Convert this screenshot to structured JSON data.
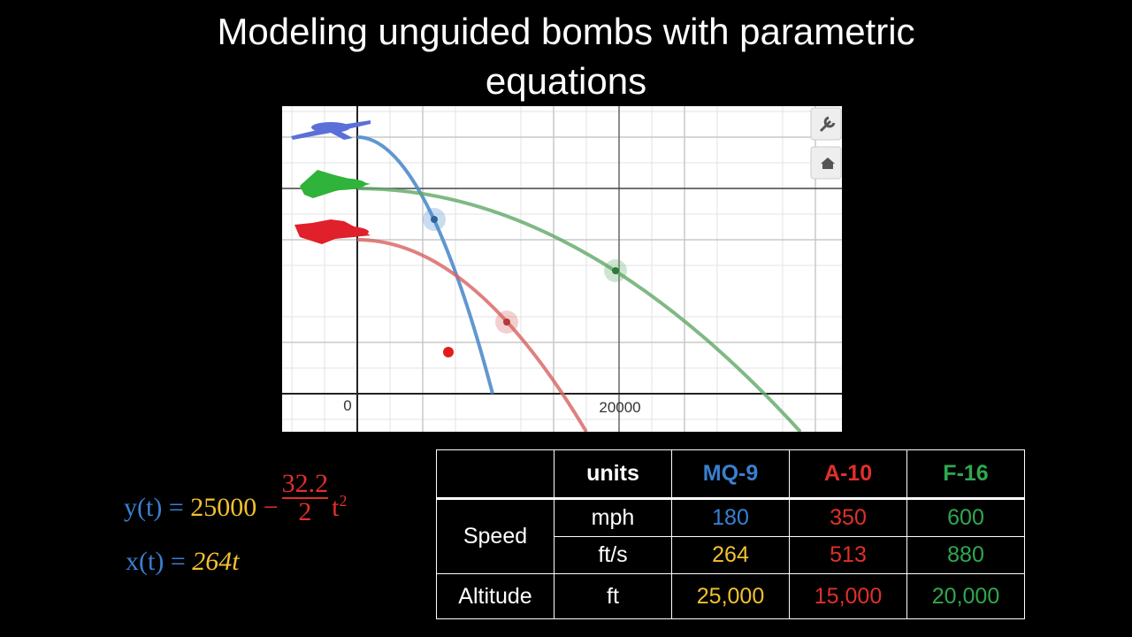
{
  "header": {
    "title": "Modeling unguided bombs with parametric equations"
  },
  "graph": {
    "x_labels": [
      0,
      20000
    ]
  },
  "equations": [
    {
      "lhs": "y(t)",
      "eq": "=",
      "const": "25000",
      "minus": "−",
      "num": "32.2",
      "den": "2",
      "var": "t",
      "exp": "2"
    },
    {
      "lhs": "x(t)",
      "eq": "=",
      "coef": "264",
      "var": "t"
    }
  ],
  "table": {
    "columns": [
      "units",
      "MQ-9",
      "A-10",
      "F-16"
    ],
    "groups": [
      {
        "label": "Speed",
        "rows": [
          [
            "mph",
            "180",
            "350",
            "600"
          ],
          [
            "ft/s",
            "264",
            "513",
            "880"
          ]
        ]
      },
      {
        "label": "Altitude",
        "rows": [
          [
            "ft",
            "25,000",
            "15,000",
            "20,000"
          ]
        ]
      }
    ]
  }
}
